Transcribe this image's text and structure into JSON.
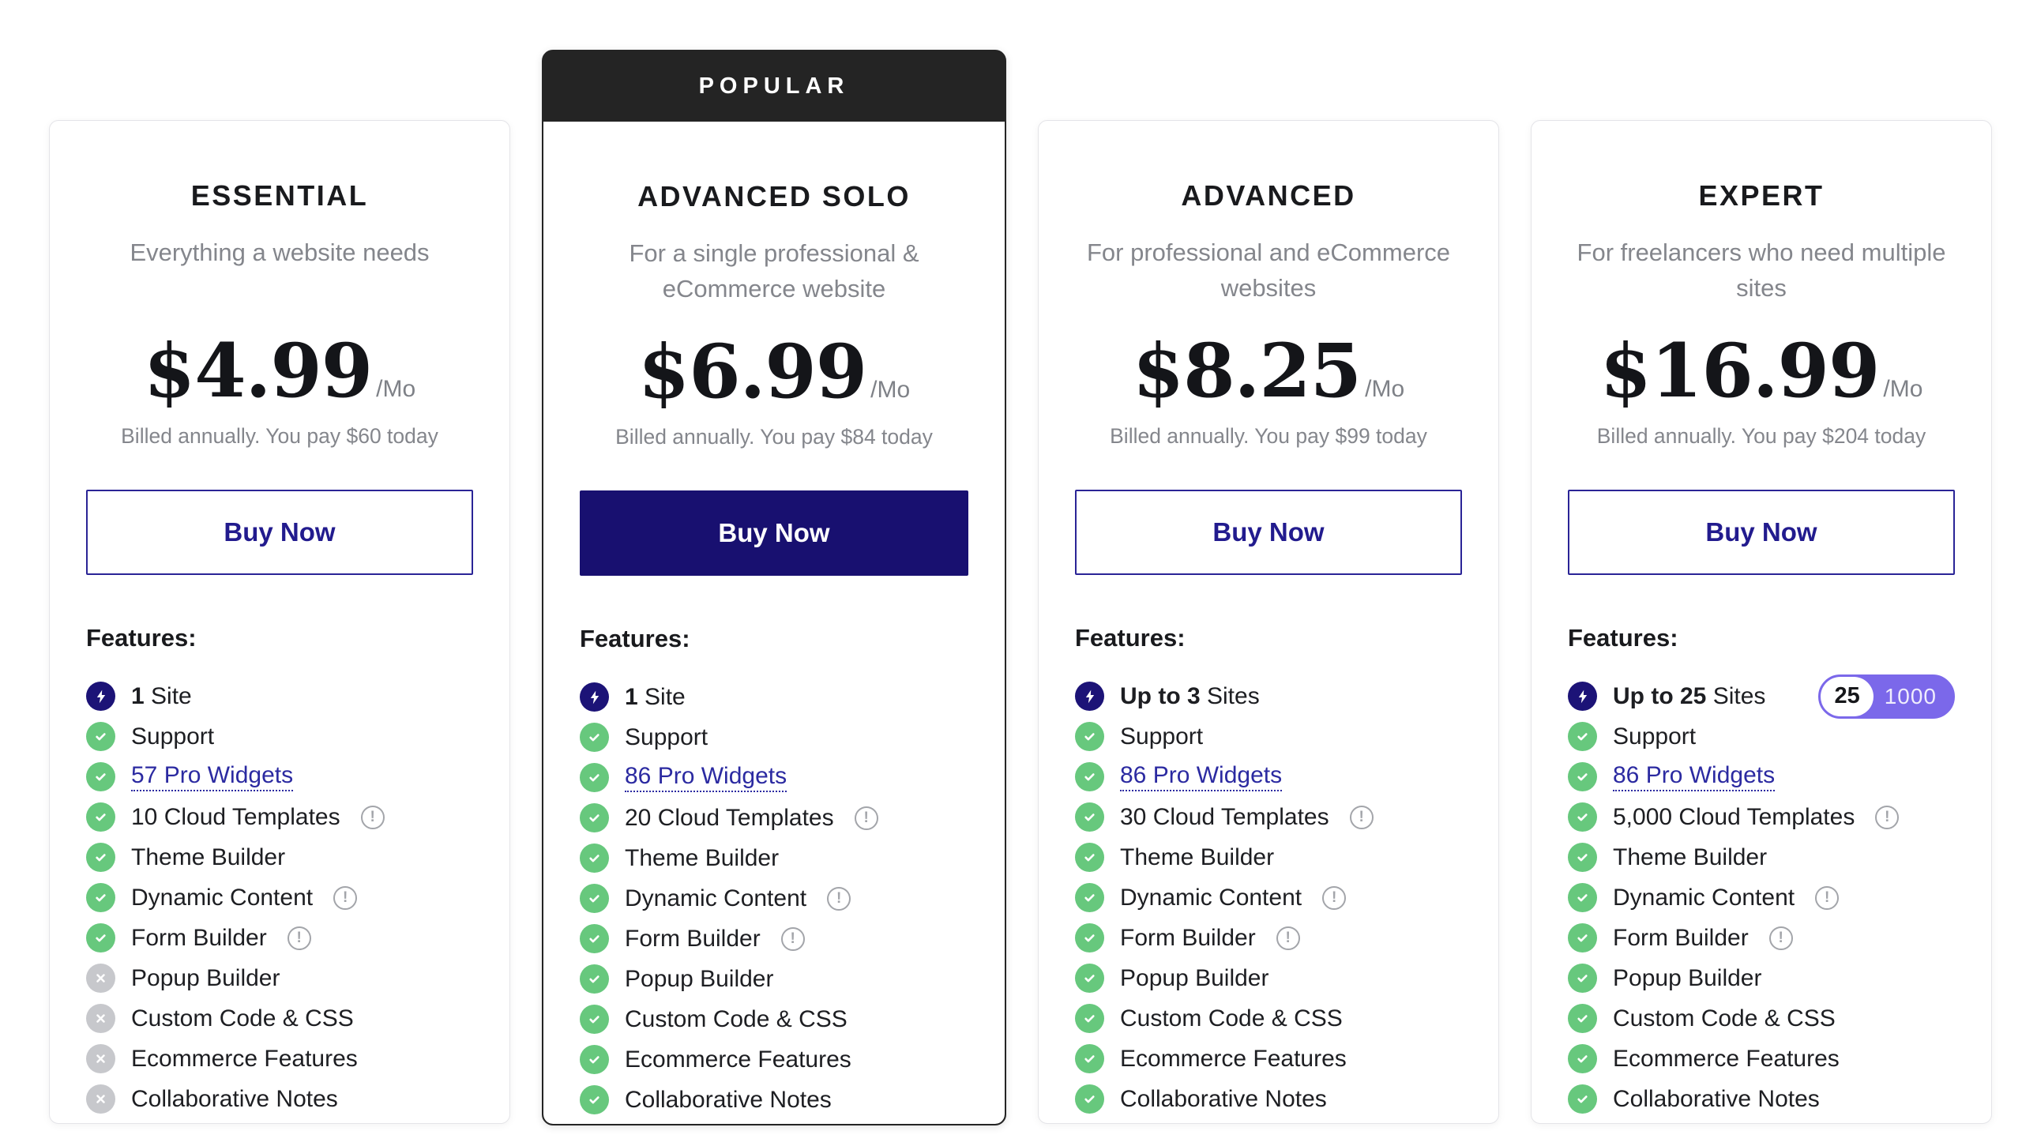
{
  "ui": {
    "buy_now_label": "Buy Now",
    "features_heading": "Features:",
    "popular_badge": "POPULAR"
  },
  "colors": {
    "accent_navy": "#181070",
    "outline_navy": "#2a2496",
    "link_indigo": "#2b2aa1",
    "check_green": "#67c87d",
    "cross_gray": "#c7c8cc",
    "badge_dark": "#242424",
    "toggle_purple": "#7b68ea",
    "muted_text": "#84868c"
  },
  "icons": {
    "info_glyph": "!",
    "check": "check-icon",
    "cross": "cross-icon",
    "bolt": "bolt-icon"
  },
  "plans": [
    {
      "name": "ESSENTIAL",
      "description": "Everything a website needs",
      "price": "$4.99",
      "per": "/Mo",
      "billing_note": "Billed annually. You pay $60 today",
      "cta_variant": "outline",
      "features": [
        {
          "icon": "bolt",
          "bold": "1",
          "text": "Site"
        },
        {
          "icon": "check",
          "text": "Support"
        },
        {
          "icon": "check",
          "text": "57 Pro Widgets",
          "link": true
        },
        {
          "icon": "check",
          "text": "10 Cloud Templates",
          "info": true
        },
        {
          "icon": "check",
          "text": "Theme Builder"
        },
        {
          "icon": "check",
          "text": "Dynamic Content",
          "info": true
        },
        {
          "icon": "check",
          "text": "Form Builder",
          "info": true
        },
        {
          "icon": "cross",
          "text": "Popup Builder"
        },
        {
          "icon": "cross",
          "text": "Custom Code & CSS"
        },
        {
          "icon": "cross",
          "text": "Ecommerce Features"
        },
        {
          "icon": "cross",
          "text": "Collaborative Notes"
        }
      ]
    },
    {
      "name": "ADVANCED SOLO",
      "badge": "POPULAR",
      "description": "For a single professional & eCommerce website",
      "price": "$6.99",
      "per": "/Mo",
      "billing_note": "Billed annually. You pay $84 today",
      "cta_variant": "solid",
      "features": [
        {
          "icon": "bolt",
          "bold": "1",
          "text": "Site"
        },
        {
          "icon": "check",
          "text": "Support"
        },
        {
          "icon": "check",
          "text": "86 Pro Widgets",
          "link": true
        },
        {
          "icon": "check",
          "text": "20 Cloud Templates",
          "info": true
        },
        {
          "icon": "check",
          "text": "Theme Builder"
        },
        {
          "icon": "check",
          "text": "Dynamic Content",
          "info": true
        },
        {
          "icon": "check",
          "text": "Form Builder",
          "info": true
        },
        {
          "icon": "check",
          "text": "Popup Builder"
        },
        {
          "icon": "check",
          "text": "Custom Code & CSS"
        },
        {
          "icon": "check",
          "text": "Ecommerce Features"
        },
        {
          "icon": "check",
          "text": "Collaborative Notes"
        }
      ]
    },
    {
      "name": "ADVANCED",
      "description": "For professional and eCommerce websites",
      "price": "$8.25",
      "per": "/Mo",
      "billing_note": "Billed annually. You pay $99 today",
      "cta_variant": "outline",
      "features": [
        {
          "icon": "bolt",
          "bold": "Up to 3",
          "text": "Sites"
        },
        {
          "icon": "check",
          "text": "Support"
        },
        {
          "icon": "check",
          "text": "86 Pro Widgets",
          "link": true
        },
        {
          "icon": "check",
          "text": "30 Cloud Templates",
          "info": true
        },
        {
          "icon": "check",
          "text": "Theme Builder"
        },
        {
          "icon": "check",
          "text": "Dynamic Content",
          "info": true
        },
        {
          "icon": "check",
          "text": "Form Builder",
          "info": true
        },
        {
          "icon": "check",
          "text": "Popup Builder"
        },
        {
          "icon": "check",
          "text": "Custom Code & CSS"
        },
        {
          "icon": "check",
          "text": "Ecommerce Features"
        },
        {
          "icon": "check",
          "text": "Collaborative Notes"
        }
      ]
    },
    {
      "name": "EXPERT",
      "description": "For freelancers who need multiple sites",
      "price": "$16.99",
      "per": "/Mo",
      "billing_note": "Billed annually. You pay $204 today",
      "cta_variant": "outline",
      "features": [
        {
          "icon": "bolt",
          "bold": "Up to 25",
          "text": "Sites",
          "toggle": {
            "active": "25",
            "inactive": "1000"
          }
        },
        {
          "icon": "check",
          "text": "Support"
        },
        {
          "icon": "check",
          "text": "86 Pro Widgets",
          "link": true
        },
        {
          "icon": "check",
          "text": "5,000 Cloud Templates",
          "info": true
        },
        {
          "icon": "check",
          "text": "Theme Builder"
        },
        {
          "icon": "check",
          "text": "Dynamic Content",
          "info": true
        },
        {
          "icon": "check",
          "text": "Form Builder",
          "info": true
        },
        {
          "icon": "check",
          "text": "Popup Builder"
        },
        {
          "icon": "check",
          "text": "Custom Code & CSS"
        },
        {
          "icon": "check",
          "text": "Ecommerce Features"
        },
        {
          "icon": "check",
          "text": "Collaborative Notes"
        }
      ]
    }
  ]
}
